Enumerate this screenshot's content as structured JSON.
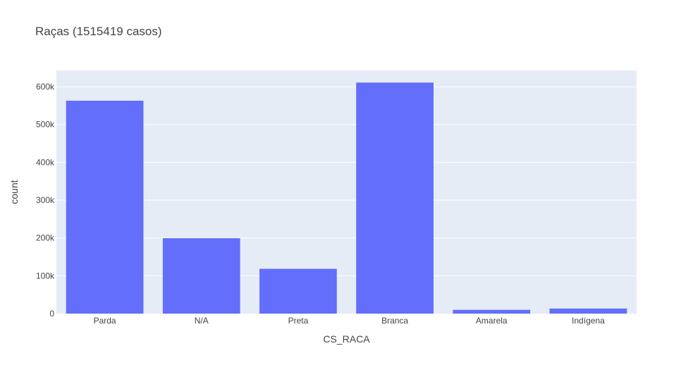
{
  "chart_data": {
    "type": "bar",
    "title": "Raças (1515419 casos)",
    "xlabel": "CS_RACA",
    "ylabel": "count",
    "categories": [
      "Parda",
      "N/A",
      "Preta",
      "Branca",
      "Amarela",
      "Indígena"
    ],
    "values": [
      563000,
      199500,
      118500,
      611000,
      10000,
      13400
    ],
    "ylim": [
      0,
      643000
    ],
    "yticks": [
      0,
      100000,
      200000,
      300000,
      400000,
      500000,
      600000
    ],
    "ytick_labels": [
      "0",
      "100k",
      "200k",
      "300k",
      "400k",
      "500k",
      "600k"
    ],
    "grid": true,
    "colors": {
      "bar": "#636efa",
      "plot_bg": "#e5ecf6",
      "grid": "#ffffff",
      "text": "#444444"
    }
  }
}
